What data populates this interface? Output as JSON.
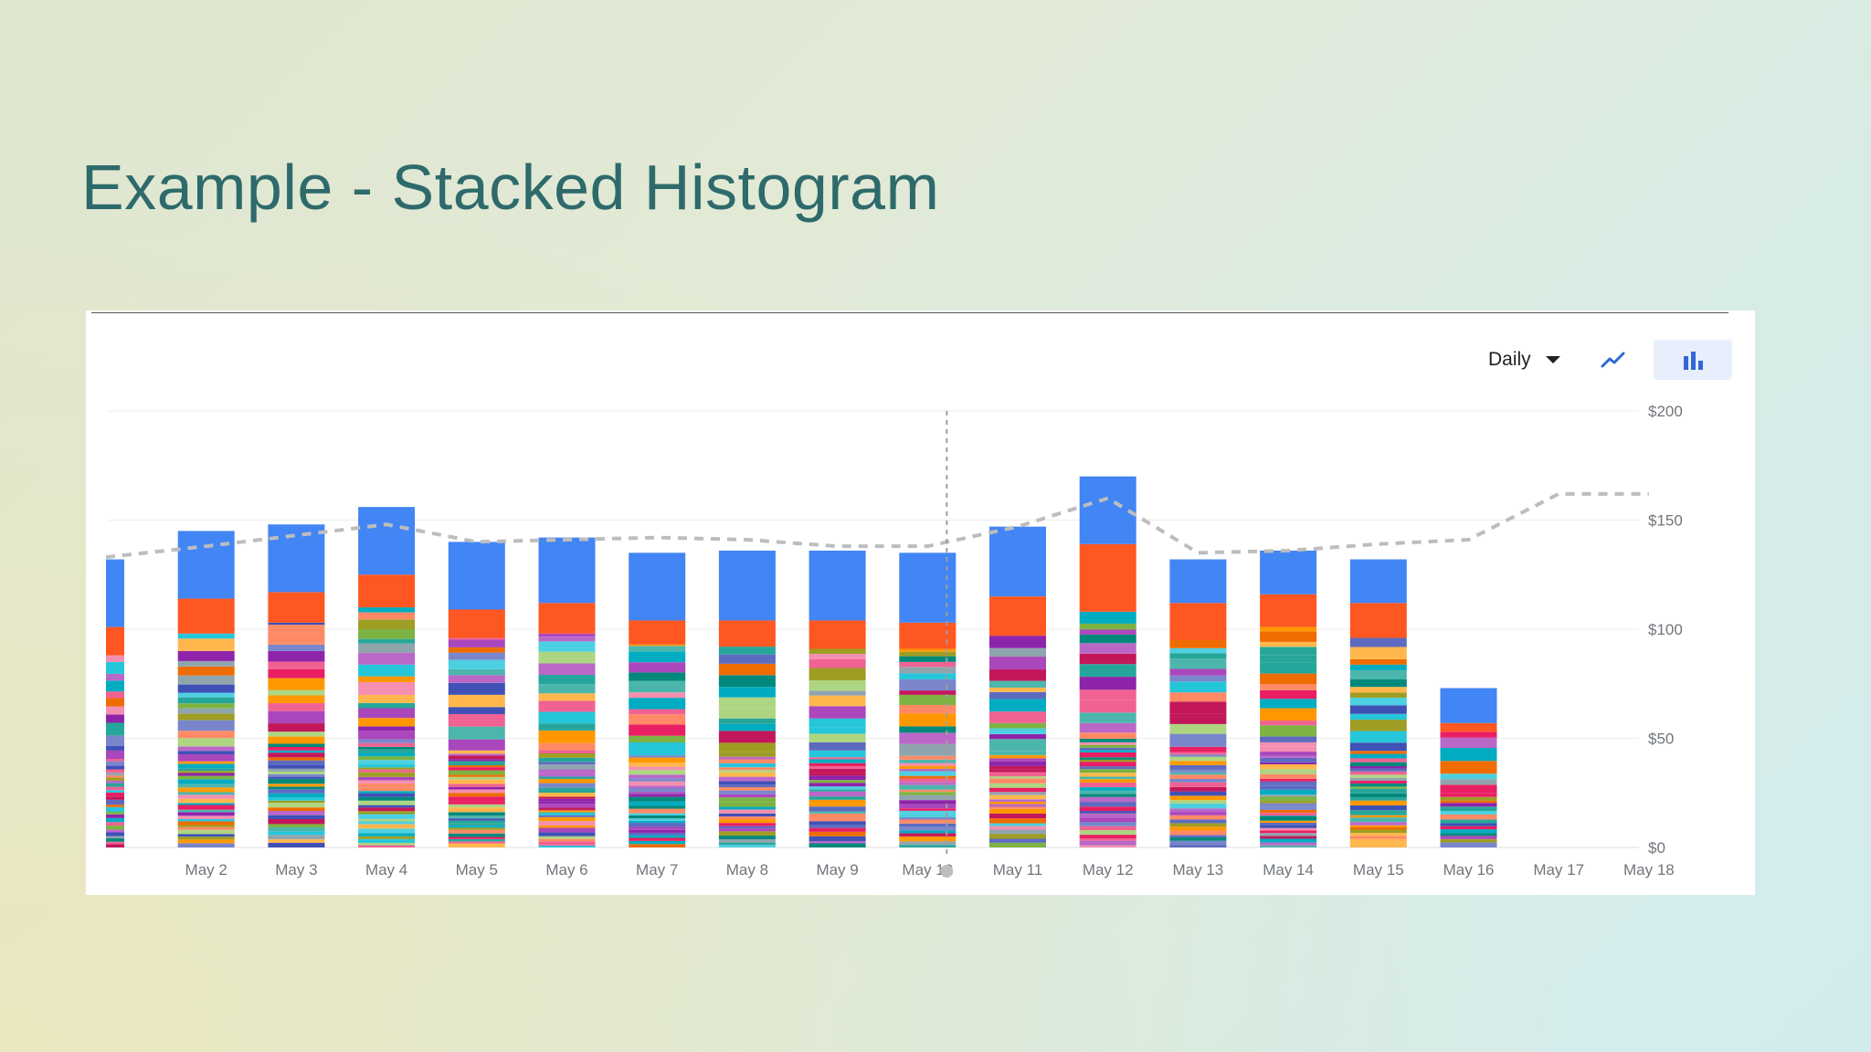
{
  "slide": {
    "title": "Example - Stacked Histogram"
  },
  "controls": {
    "period": "Daily",
    "line_icon": "trending-line-icon",
    "bar_icon": "bar-chart-icon",
    "active_view": "bar"
  },
  "chart_data": {
    "type": "bar",
    "stacked": true,
    "categories": [
      "",
      "May 2",
      "May 3",
      "May 4",
      "May 5",
      "May 6",
      "May 7",
      "May 8",
      "May 9",
      "May 10",
      "May 11",
      "May 12",
      "May 13",
      "May 14",
      "May 15",
      "May 16",
      "May 17",
      "May 18"
    ],
    "totals": [
      132,
      145,
      148,
      156,
      140,
      142,
      135,
      136,
      136,
      135,
      147,
      170,
      132,
      136,
      132,
      73,
      0,
      0
    ],
    "top_segment": [
      31,
      31,
      31,
      31,
      31,
      30,
      31,
      32,
      32,
      32,
      32,
      31,
      20,
      20,
      20,
      16,
      0,
      0
    ],
    "second_segment": [
      13,
      16,
      14,
      15,
      13,
      14,
      11,
      12,
      13,
      12,
      18,
      31,
      17,
      15,
      16,
      4,
      0,
      0
    ],
    "trend_line": [
      133,
      138,
      143,
      148,
      140,
      141,
      142,
      141,
      138,
      138,
      147,
      160,
      135,
      136,
      139,
      141,
      162,
      162
    ],
    "hover_category": "May 10",
    "yticks": [
      "$0",
      "$50",
      "$100",
      "$150",
      "$200"
    ],
    "ylim": [
      0,
      200
    ],
    "ylabel_position": "right",
    "grid": true,
    "colors": {
      "top": "#4285f4",
      "second": "#ff5722",
      "accent": "#3367d6",
      "trend": "#bdbdbd",
      "palette": [
        "#ff9800",
        "#7cb342",
        "#ab47bc",
        "#00acc1",
        "#5c6bc0",
        "#f06292",
        "#e91e63",
        "#26a69a",
        "#9e9d24",
        "#3f51b5",
        "#ef6c00",
        "#8e24aa",
        "#00897b",
        "#c2185b",
        "#4dd0e1",
        "#7986cb",
        "#ffb74d",
        "#aed581",
        "#ba68c8",
        "#4db6ac",
        "#f48fb1",
        "#90a4ae",
        "#ff8a65",
        "#26c6da"
      ]
    }
  }
}
